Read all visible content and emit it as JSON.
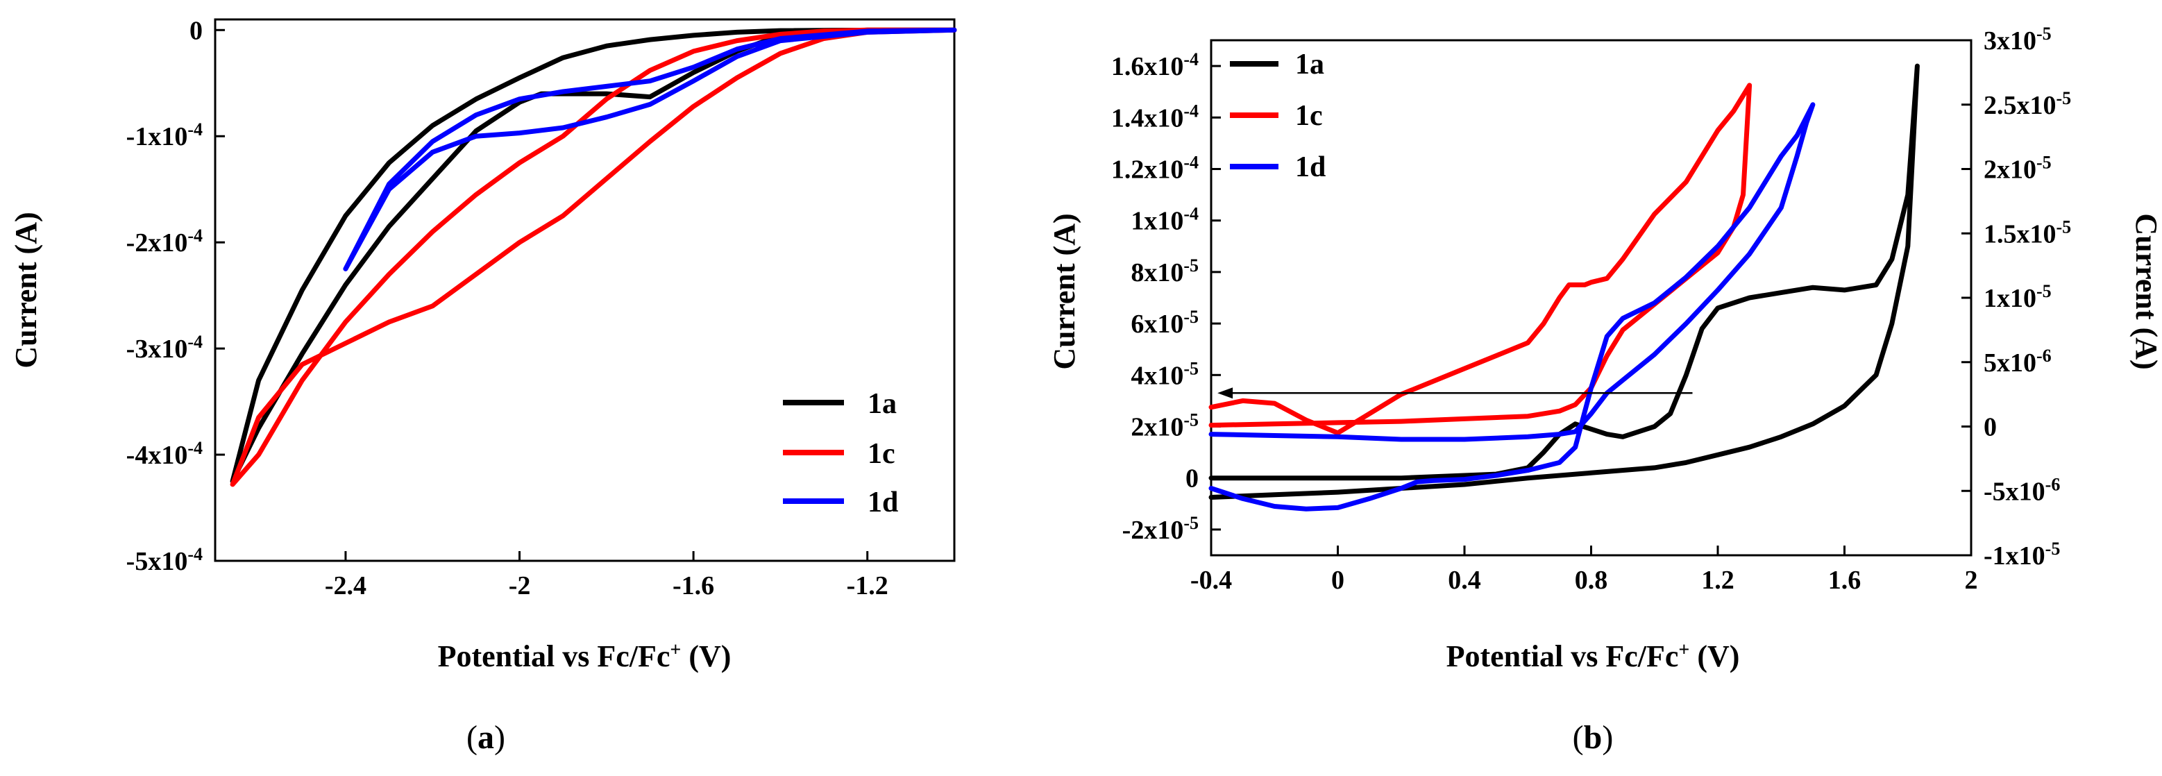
{
  "chart_data": [
    {
      "panel": "a",
      "caption_label": "a",
      "type": "line",
      "xlabel_main": "Potential vs Fc/Fc",
      "xlabel_sup": "+",
      "xlabel_tail": " (V)",
      "ylabel": "Current (A)",
      "xlim": [
        -2.7,
        -1.0
      ],
      "ylim": [
        -0.0005,
        1e-05
      ],
      "xticks": [
        -2.4,
        -2.0,
        -1.6,
        -1.2
      ],
      "xtick_labels": [
        "-2.4",
        "-2",
        "-1.6",
        "-1.2"
      ],
      "yticks": [
        0,
        -0.0001,
        -0.0002,
        -0.0003,
        -0.0004,
        -0.0005
      ],
      "ytick_labels": [
        "0",
        "-1x10",
        "-2x10",
        "-3x10",
        "-4x10",
        "-5x10"
      ],
      "ytick_exponents": [
        "",
        "-4",
        "-4",
        "-4",
        "-4",
        "-4"
      ],
      "legend_position": "bottom-right",
      "series": [
        {
          "name": "1a",
          "color": "#000000",
          "x": [
            -1.0,
            -1.2,
            -1.4,
            -1.5,
            -1.6,
            -1.7,
            -1.8,
            -1.9,
            -2.0,
            -2.1,
            -2.2,
            -2.3,
            -2.4,
            -2.5,
            -2.6,
            -2.66,
            -2.6,
            -2.5,
            -2.4,
            -2.3,
            -2.2,
            -2.1,
            -2.0,
            -1.95,
            -1.9,
            -1.8,
            -1.7,
            -1.6,
            -1.5,
            -1.4,
            -1.2,
            -1.0
          ],
          "y": [
            0,
            0,
            -5e-07,
            -2e-06,
            -5e-06,
            -9e-06,
            -1.5e-05,
            -2.6e-05,
            -4.5e-05,
            -6.5e-05,
            -9e-05,
            -0.000125,
            -0.000175,
            -0.000245,
            -0.00033,
            -0.000425,
            -0.000375,
            -0.000305,
            -0.00024,
            -0.000185,
            -0.00014,
            -9.5e-05,
            -6.8e-05,
            -6e-05,
            -6e-05,
            -6e-05,
            -6.3e-05,
            -4e-05,
            -2e-05,
            -5e-06,
            0,
            0
          ]
        },
        {
          "name": "1c",
          "color": "#ff0000",
          "x": [
            -1.0,
            -1.2,
            -1.3,
            -1.4,
            -1.5,
            -1.6,
            -1.7,
            -1.8,
            -1.9,
            -2.0,
            -2.1,
            -2.2,
            -2.3,
            -2.4,
            -2.5,
            -2.6,
            -2.66,
            -2.6,
            -2.5,
            -2.4,
            -2.3,
            -2.2,
            -2.1,
            -2.0,
            -1.9,
            -1.8,
            -1.7,
            -1.6,
            -1.5,
            -1.4,
            -1.3,
            -1.2,
            -1.0
          ],
          "y": [
            0,
            0,
            -1e-06,
            -4e-06,
            -1e-05,
            -2e-05,
            -3.8e-05,
            -6.5e-05,
            -0.0001,
            -0.000125,
            -0.000155,
            -0.00019,
            -0.00023,
            -0.000275,
            -0.00033,
            -0.0004,
            -0.000428,
            -0.000365,
            -0.000315,
            -0.000295,
            -0.000275,
            -0.00026,
            -0.00023,
            -0.0002,
            -0.000175,
            -0.00014,
            -0.000105,
            -7.2e-05,
            -4.5e-05,
            -2.2e-05,
            -8e-06,
            -2e-06,
            0
          ]
        },
        {
          "name": "1d",
          "color": "#0000ff",
          "x": [
            -1.0,
            -1.2,
            -1.4,
            -1.5,
            -1.6,
            -1.7,
            -1.8,
            -1.9,
            -2.0,
            -2.1,
            -2.2,
            -2.3,
            -2.4,
            -2.3,
            -2.2,
            -2.1,
            -2.0,
            -1.9,
            -1.8,
            -1.7,
            -1.6,
            -1.5,
            -1.4,
            -1.2,
            -1.0
          ],
          "y": [
            0,
            -1e-06,
            -8e-06,
            -1.8e-05,
            -3.5e-05,
            -4.8e-05,
            -5.3e-05,
            -5.8e-05,
            -6.5e-05,
            -8e-05,
            -0.000105,
            -0.000145,
            -0.000225,
            -0.00015,
            -0.000115,
            -0.0001,
            -9.7e-05,
            -9.2e-05,
            -8.2e-05,
            -7e-05,
            -4.8e-05,
            -2.5e-05,
            -1e-05,
            -2e-06,
            0
          ]
        }
      ]
    },
    {
      "panel": "b",
      "caption_label": "b",
      "type": "line",
      "xlabel_main": "Potential vs Fc/Fc",
      "xlabel_sup": "+",
      "xlabel_tail": " (V)",
      "ylabel": "Current (A)",
      "ylabel_right": "Current (A)",
      "xlim": [
        -0.4,
        2.0
      ],
      "ylim": [
        -3e-05,
        0.00017
      ],
      "ylim_right": [
        -1e-05,
        3e-05
      ],
      "xticks": [
        -0.4,
        0,
        0.4,
        0.8,
        1.2,
        1.6,
        2.0
      ],
      "xtick_labels": [
        "-0.4",
        "0",
        "0.4",
        "0.8",
        "1.2",
        "1.6",
        "2"
      ],
      "yticks": [
        -2e-05,
        0,
        2e-05,
        4e-05,
        6e-05,
        8e-05,
        0.0001,
        0.00012,
        0.00014,
        0.00016
      ],
      "ytick_labels": [
        "-2x10",
        "0",
        "2x10",
        "4x10",
        "6x10",
        "8x10",
        "1x10",
        "1.2x10",
        "1.4x10",
        "1.6x10"
      ],
      "ytick_exponents": [
        "-5",
        "",
        "-5",
        "-5",
        "-5",
        "-5",
        "-4",
        "-4",
        "-4",
        "-4"
      ],
      "yticks_right": [
        -1e-05,
        -5e-06,
        0,
        5e-06,
        1e-05,
        1.5e-05,
        2e-05,
        2.5e-05,
        3e-05
      ],
      "ytick_labels_right": [
        "-1x10",
        "-5x10",
        "0",
        "5x10",
        "1x10",
        "1.5x10",
        "2x10",
        "2.5x10",
        "3x10"
      ],
      "ytick_exponents_right": [
        "-5",
        "-6",
        "",
        "-6",
        "-5",
        "-5",
        "-5",
        "-5",
        "-5"
      ],
      "annotation_arrow": {
        "from": [
          1.12,
          3.3e-05
        ],
        "to": [
          -0.38,
          3.3e-05
        ]
      },
      "legend_position": "top-left",
      "series": [
        {
          "name": "1a",
          "axis": "left",
          "color": "#000000",
          "x": [
            -0.4,
            -0.2,
            0,
            0.2,
            0.4,
            0.5,
            0.6,
            0.65,
            0.7,
            0.75,
            0.8,
            0.85,
            0.9,
            0.95,
            1.0,
            1.05,
            1.1,
            1.15,
            1.2,
            1.3,
            1.4,
            1.5,
            1.6,
            1.7,
            1.75,
            1.8,
            1.83,
            1.8,
            1.75,
            1.7,
            1.6,
            1.5,
            1.4,
            1.3,
            1.2,
            1.1,
            1.0,
            0.8,
            0.6,
            0.4,
            0.2,
            0,
            -0.2,
            -0.4
          ],
          "y": [
            0,
            0,
            0,
            0,
            1e-06,
            1.5e-06,
            4e-06,
            1e-05,
            1.7e-05,
            2.1e-05,
            1.9e-05,
            1.7e-05,
            1.6e-05,
            1.8e-05,
            2e-05,
            2.5e-05,
            4e-05,
            5.8e-05,
            6.6e-05,
            7e-05,
            7.2e-05,
            7.4e-05,
            7.3e-05,
            7.5e-05,
            8.5e-05,
            0.00011,
            0.00016,
            9e-05,
            6e-05,
            4e-05,
            2.8e-05,
            2.1e-05,
            1.6e-05,
            1.2e-05,
            9e-06,
            6e-06,
            4e-06,
            2e-06,
            0,
            -2.5e-06,
            -4e-06,
            -5.5e-06,
            -6.5e-06,
            -7.5e-06
          ]
        },
        {
          "name": "1c",
          "axis": "right",
          "color": "#ff0000",
          "x": [
            -0.4,
            -0.3,
            -0.2,
            -0.1,
            0,
            0.1,
            0.2,
            0.4,
            0.5,
            0.6,
            0.65,
            0.7,
            0.73,
            0.75,
            0.78,
            0.8,
            0.85,
            0.9,
            1.0,
            1.1,
            1.2,
            1.25,
            1.3,
            1.28,
            1.25,
            1.2,
            1.1,
            1.0,
            0.9,
            0.85,
            0.8,
            0.75,
            0.7,
            0.6,
            0.4,
            0.2,
            0,
            -0.2,
            -0.4
          ],
          "y": [
            1.5e-06,
            2e-06,
            1.8e-06,
            5e-07,
            -5e-07,
            1e-06,
            2.5e-06,
            4.5e-06,
            5.5e-06,
            6.5e-06,
            8e-06,
            1e-05,
            1.1e-05,
            1.1e-05,
            1.1e-05,
            1.12e-05,
            1.15e-05,
            1.3e-05,
            1.65e-05,
            1.9e-05,
            2.3e-05,
            2.45e-05,
            2.65e-05,
            1.8e-05,
            1.55e-05,
            1.35e-05,
            1.15e-05,
            9.5e-06,
            7.5e-06,
            5.5e-06,
            3e-06,
            1.7e-06,
            1.2e-06,
            8e-07,
            6e-07,
            4e-07,
            3e-07,
            2e-07,
            1e-07
          ]
        },
        {
          "name": "1d",
          "axis": "left",
          "color": "#0000ff",
          "x": [
            -0.4,
            -0.3,
            -0.2,
            -0.1,
            0,
            0.1,
            0.2,
            0.25,
            0.3,
            0.4,
            0.5,
            0.6,
            0.7,
            0.75,
            0.8,
            0.85,
            0.9,
            1.0,
            1.1,
            1.2,
            1.3,
            1.4,
            1.45,
            1.5,
            1.48,
            1.45,
            1.4,
            1.3,
            1.2,
            1.1,
            1.0,
            0.9,
            0.85,
            0.8,
            0.75,
            0.7,
            0.6,
            0.4,
            0.2,
            0,
            -0.2,
            -0.4
          ],
          "y": [
            -4e-06,
            -8e-06,
            -1.1e-05,
            -1.2e-05,
            -1.15e-05,
            -8e-06,
            -4e-06,
            -1.5e-06,
            -1e-06,
            -5e-07,
            1e-06,
            3e-06,
            6e-06,
            1.2e-05,
            3.5e-05,
            5.5e-05,
            6.2e-05,
            6.8e-05,
            7.8e-05,
            9e-05,
            0.000105,
            0.000125,
            0.000133,
            0.000145,
            0.000138,
            0.000125,
            0.000105,
            8.7e-05,
            7.3e-05,
            6e-05,
            4.8e-05,
            3.8e-05,
            3.3e-05,
            2.5e-05,
            1.8e-05,
            1.7e-05,
            1.6e-05,
            1.5e-05,
            1.5e-05,
            1.6e-05,
            1.65e-05,
            1.7e-05
          ]
        }
      ]
    }
  ]
}
